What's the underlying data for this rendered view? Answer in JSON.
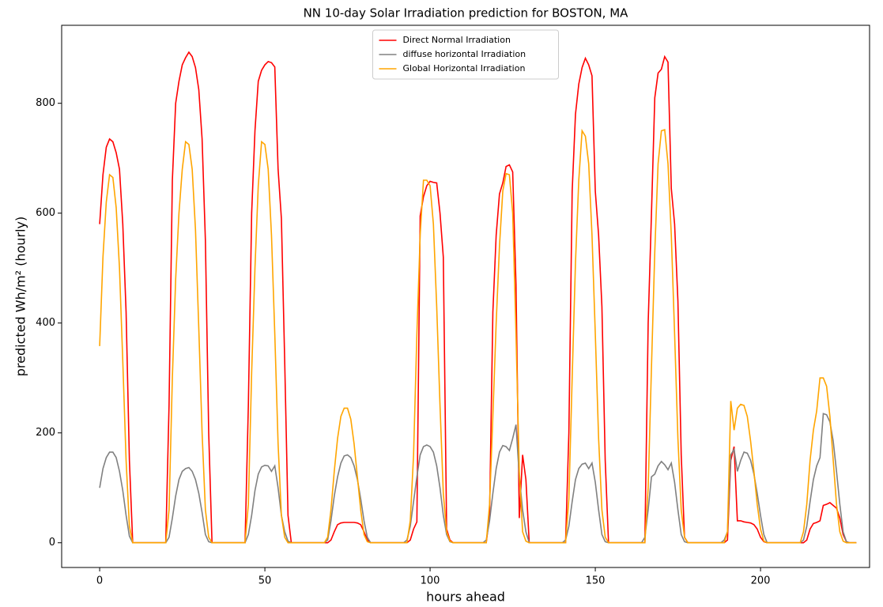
{
  "chart_data": {
    "type": "line",
    "title": "NN 10-day Solar Irradiation prediction for BOSTON, MA",
    "xlabel": "hours ahead",
    "ylabel": "predicted Wh/m² (hourly)",
    "xlim": [
      -11.5,
      233
    ],
    "ylim": [
      -45,
      942
    ],
    "xticks": [
      0,
      50,
      100,
      150,
      200
    ],
    "yticks": [
      0,
      200,
      400,
      600,
      800
    ],
    "grid": false,
    "legend": "upper center",
    "x": [
      0,
      1,
      2,
      3,
      4,
      5,
      6,
      7,
      8,
      9,
      10,
      11,
      12,
      13,
      14,
      15,
      16,
      17,
      18,
      19,
      20,
      21,
      22,
      23,
      24,
      25,
      26,
      27,
      28,
      29,
      30,
      31,
      32,
      33,
      34,
      35,
      36,
      37,
      38,
      39,
      40,
      41,
      42,
      43,
      44,
      45,
      46,
      47,
      48,
      49,
      50,
      51,
      52,
      53,
      54,
      55,
      56,
      57,
      58,
      59,
      60,
      61,
      62,
      63,
      64,
      65,
      66,
      67,
      68,
      69,
      70,
      71,
      72,
      73,
      74,
      75,
      76,
      77,
      78,
      79,
      80,
      81,
      82,
      83,
      84,
      85,
      86,
      87,
      88,
      89,
      90,
      91,
      92,
      93,
      94,
      95,
      96,
      97,
      98,
      99,
      100,
      101,
      102,
      103,
      104,
      105,
      106,
      107,
      108,
      109,
      110,
      111,
      112,
      113,
      114,
      115,
      116,
      117,
      118,
      119,
      120,
      121,
      122,
      123,
      124,
      125,
      126,
      127,
      128,
      129,
      130,
      131,
      132,
      133,
      134,
      135,
      136,
      137,
      138,
      139,
      140,
      141,
      142,
      143,
      144,
      145,
      146,
      147,
      148,
      149,
      150,
      151,
      152,
      153,
      154,
      155,
      156,
      157,
      158,
      159,
      160,
      161,
      162,
      163,
      164,
      165,
      166,
      167,
      168,
      169,
      170,
      171,
      172,
      173,
      174,
      175,
      176,
      177,
      178,
      179,
      180,
      181,
      182,
      183,
      184,
      185,
      186,
      187,
      188,
      189,
      190,
      191,
      192,
      193,
      194,
      195,
      196,
      197,
      198,
      199,
      200,
      201,
      202,
      203,
      204,
      205,
      206,
      207,
      208,
      209,
      210,
      211,
      212,
      213,
      214,
      215,
      216,
      217,
      218,
      219,
      220,
      221,
      222,
      223,
      224,
      225,
      226,
      227,
      228,
      229
    ],
    "series": [
      {
        "name": "Direct Normal Irradiation",
        "color": "#ff0000",
        "values": [
          580,
          670,
          720,
          735,
          730,
          710,
          680,
          580,
          420,
          150,
          0,
          0,
          0,
          0,
          0,
          0,
          0,
          0,
          0,
          0,
          0,
          250,
          660,
          800,
          840,
          870,
          883,
          893,
          885,
          865,
          825,
          735,
          550,
          200,
          0,
          0,
          0,
          0,
          0,
          0,
          0,
          0,
          0,
          0,
          0,
          250,
          600,
          750,
          840,
          860,
          870,
          876,
          874,
          866,
          680,
          590,
          330,
          50,
          0,
          0,
          0,
          0,
          0,
          0,
          0,
          0,
          0,
          0,
          0,
          0,
          5,
          20,
          33,
          36,
          37,
          37,
          37,
          37,
          36,
          33,
          20,
          5,
          0,
          0,
          0,
          0,
          0,
          0,
          0,
          0,
          0,
          0,
          0,
          0,
          5,
          25,
          38,
          595,
          630,
          650,
          658,
          656,
          655,
          600,
          520,
          25,
          5,
          0,
          0,
          0,
          0,
          0,
          0,
          0,
          0,
          0,
          0,
          0,
          50,
          420,
          560,
          635,
          655,
          685,
          688,
          675,
          470,
          45,
          160,
          115,
          0,
          0,
          0,
          0,
          0,
          0,
          0,
          0,
          0,
          0,
          0,
          0,
          200,
          640,
          780,
          835,
          865,
          882,
          870,
          850,
          640,
          560,
          430,
          150,
          0,
          0,
          0,
          0,
          0,
          0,
          0,
          0,
          0,
          0,
          0,
          0,
          400,
          600,
          810,
          855,
          862,
          885,
          875,
          645,
          580,
          440,
          160,
          10,
          0,
          0,
          0,
          0,
          0,
          0,
          0,
          0,
          0,
          0,
          0,
          0,
          5,
          150,
          175,
          40,
          40,
          38,
          37,
          36,
          33,
          25,
          10,
          2,
          0,
          0,
          0,
          0,
          0,
          0,
          0,
          0,
          0,
          0,
          0,
          0,
          5,
          25,
          35,
          37,
          40,
          68,
          70,
          73,
          68,
          63,
          45,
          15,
          2,
          0,
          0,
          0
        ]
      },
      {
        "name": "diffuse horizontal Irradiation",
        "color": "#808080",
        "values": [
          100,
          135,
          155,
          165,
          165,
          155,
          130,
          95,
          50,
          12,
          0,
          0,
          0,
          0,
          0,
          0,
          0,
          0,
          0,
          0,
          0,
          10,
          45,
          85,
          115,
          130,
          135,
          137,
          130,
          115,
          90,
          55,
          15,
          2,
          0,
          0,
          0,
          0,
          0,
          0,
          0,
          0,
          0,
          0,
          0,
          15,
          50,
          95,
          125,
          138,
          141,
          140,
          130,
          140,
          100,
          50,
          20,
          3,
          0,
          0,
          0,
          0,
          0,
          0,
          0,
          0,
          0,
          0,
          0,
          5,
          40,
          85,
          120,
          145,
          158,
          160,
          155,
          140,
          115,
          80,
          40,
          10,
          0,
          0,
          0,
          0,
          0,
          0,
          0,
          0,
          0,
          0,
          0,
          5,
          30,
          75,
          120,
          160,
          175,
          178,
          175,
          165,
          140,
          100,
          50,
          15,
          2,
          0,
          0,
          0,
          0,
          0,
          0,
          0,
          0,
          0,
          0,
          5,
          40,
          90,
          135,
          165,
          177,
          175,
          168,
          190,
          215,
          120,
          60,
          20,
          0,
          0,
          0,
          0,
          0,
          0,
          0,
          0,
          0,
          0,
          0,
          5,
          30,
          75,
          115,
          135,
          143,
          145,
          135,
          145,
          110,
          60,
          15,
          2,
          0,
          0,
          0,
          0,
          0,
          0,
          0,
          0,
          0,
          0,
          0,
          10,
          60,
          120,
          125,
          140,
          148,
          142,
          133,
          145,
          110,
          60,
          15,
          2,
          0,
          0,
          0,
          0,
          0,
          0,
          0,
          0,
          0,
          0,
          0,
          5,
          20,
          160,
          170,
          130,
          150,
          165,
          163,
          150,
          125,
          90,
          50,
          15,
          0,
          0,
          0,
          0,
          0,
          0,
          0,
          0,
          0,
          0,
          0,
          5,
          30,
          75,
          115,
          140,
          155,
          235,
          233,
          220,
          185,
          130,
          70,
          20,
          2,
          0,
          0,
          0
        ]
      },
      {
        "name": "Global Horizontal Irradiation",
        "color": "#ffa500",
        "values": [
          358,
          520,
          620,
          670,
          665,
          610,
          500,
          330,
          150,
          30,
          0,
          0,
          0,
          0,
          0,
          0,
          0,
          0,
          0,
          0,
          0,
          60,
          300,
          480,
          600,
          680,
          730,
          725,
          680,
          570,
          390,
          200,
          60,
          10,
          0,
          0,
          0,
          0,
          0,
          0,
          0,
          0,
          0,
          0,
          0,
          70,
          310,
          500,
          650,
          730,
          725,
          680,
          560,
          380,
          180,
          50,
          10,
          0,
          0,
          0,
          0,
          0,
          0,
          0,
          0,
          0,
          0,
          0,
          0,
          10,
          60,
          130,
          190,
          230,
          245,
          245,
          225,
          180,
          120,
          60,
          15,
          2,
          0,
          0,
          0,
          0,
          0,
          0,
          0,
          0,
          0,
          0,
          0,
          0,
          40,
          160,
          380,
          560,
          660,
          660,
          650,
          580,
          430,
          250,
          90,
          20,
          3,
          0,
          0,
          0,
          0,
          0,
          0,
          0,
          0,
          0,
          0,
          0,
          70,
          230,
          400,
          540,
          640,
          672,
          670,
          600,
          380,
          130,
          20,
          3,
          0,
          0,
          0,
          0,
          0,
          0,
          0,
          0,
          0,
          0,
          0,
          0,
          80,
          300,
          510,
          660,
          750,
          740,
          690,
          560,
          380,
          190,
          60,
          10,
          0,
          0,
          0,
          0,
          0,
          0,
          0,
          0,
          0,
          0,
          0,
          0,
          100,
          320,
          530,
          690,
          750,
          752,
          690,
          560,
          380,
          190,
          60,
          10,
          0,
          0,
          0,
          0,
          0,
          0,
          0,
          0,
          0,
          0,
          0,
          0,
          20,
          258,
          205,
          245,
          252,
          250,
          230,
          185,
          130,
          70,
          25,
          3,
          0,
          0,
          0,
          0,
          0,
          0,
          0,
          0,
          0,
          0,
          0,
          20,
          70,
          150,
          205,
          240,
          300,
          300,
          285,
          230,
          150,
          70,
          20,
          3,
          0,
          0,
          0,
          0
        ]
      }
    ]
  }
}
